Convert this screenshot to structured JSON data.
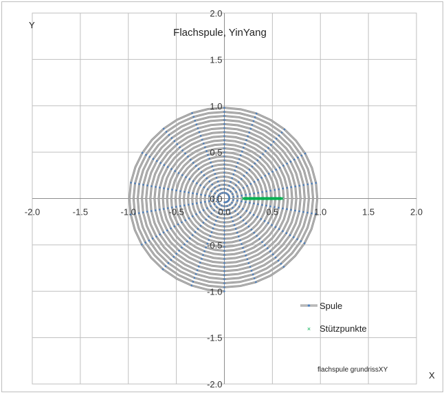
{
  "chart_data": {
    "type": "scatter",
    "title": "Flachspule, YinYang",
    "xlabel": "X",
    "ylabel": "Y",
    "xlim": [
      -2.0,
      2.0
    ],
    "ylim": [
      -2.0,
      2.0
    ],
    "xticks": [
      -2.0,
      -1.5,
      -1.0,
      -0.5,
      0.0,
      0.5,
      1.0,
      1.5,
      2.0
    ],
    "yticks": [
      -2.0,
      -1.5,
      -1.0,
      -0.5,
      0.0,
      0.5,
      1.0,
      1.5,
      2.0
    ],
    "xtick_labels": [
      "-2.0",
      "-1.5",
      "-1.0",
      "-0.5",
      "0.0",
      "0.5",
      "1.0",
      "1.5",
      "2.0"
    ],
    "ytick_labels": [
      "-2.0",
      "-1.5",
      "-1.0",
      "-0.5",
      "0.0",
      "0.5",
      "1.0",
      "1.5",
      "2.0"
    ],
    "grid": true,
    "legend_position": "bottom-right",
    "note": "flachspule grundrissXY",
    "series": [
      {
        "name": "Spule",
        "kind": "spiral-line-with-markers",
        "line_color": "#b4b4b4",
        "marker_color": "#4f81bd",
        "spiral_start_radius": 0.04,
        "spiral_end_radius": 1.0,
        "turns": 22,
        "points_per_turn": 36,
        "direction": "counterclockwise"
      },
      {
        "name": "Stützpunkte",
        "color": "#00b050",
        "marker": "x",
        "points": [
          {
            "x": 0.2,
            "y": 0.0
          },
          {
            "x": 0.25,
            "y": 0.0
          },
          {
            "x": 0.3,
            "y": 0.0
          },
          {
            "x": 0.35,
            "y": 0.0
          },
          {
            "x": 0.4,
            "y": 0.0
          },
          {
            "x": 0.45,
            "y": 0.0
          },
          {
            "x": 0.5,
            "y": 0.0
          },
          {
            "x": 0.55,
            "y": 0.0
          },
          {
            "x": 0.6,
            "y": 0.0
          }
        ]
      }
    ]
  }
}
